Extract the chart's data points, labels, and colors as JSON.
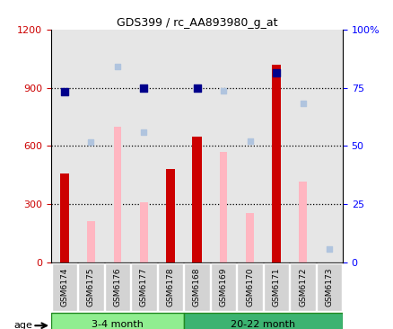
{
  "title": "GDS399 / rc_AA893980_g_at",
  "samples": [
    "GSM6174",
    "GSM6175",
    "GSM6176",
    "GSM6177",
    "GSM6178",
    "GSM6168",
    "GSM6169",
    "GSM6170",
    "GSM6171",
    "GSM6172",
    "GSM6173"
  ],
  "count_present": [
    460,
    null,
    null,
    null,
    480,
    650,
    null,
    null,
    1020,
    null,
    null
  ],
  "count_absent": [
    null,
    210,
    700,
    310,
    null,
    null,
    570,
    255,
    null,
    415,
    null
  ],
  "rank_present": [
    880,
    null,
    null,
    900,
    null,
    900,
    null,
    null,
    975,
    null,
    null
  ],
  "rank_absent": [
    null,
    620,
    1010,
    670,
    null,
    null,
    885,
    625,
    null,
    820,
    70
  ],
  "ylim_left": [
    0,
    1200
  ],
  "ylim_right": [
    0,
    100
  ],
  "yticks_left": [
    0,
    300,
    600,
    900,
    1200
  ],
  "yticks_right": [
    0,
    25,
    50,
    75,
    100
  ],
  "bar_color_present": "#CC0000",
  "bar_color_absent": "#FFB6C1",
  "dot_color_present": "#00008B",
  "dot_color_absent": "#B0C4DE",
  "col_bg_color": "#D3D3D3",
  "group1_color": "#90EE90",
  "group2_color": "#3CB371",
  "n_group1": 5,
  "n_group2": 6,
  "group1_label": "3-4 month",
  "group2_label": "20-22 month"
}
